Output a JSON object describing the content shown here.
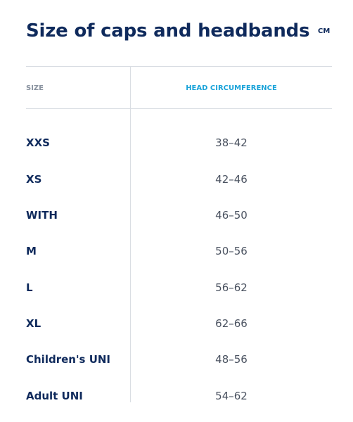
{
  "title": "Size of caps and headbands",
  "unit_toggle": "CM",
  "table": {
    "headers": {
      "size": "SIZE",
      "head_circumference": "HEAD CIRCUMFERENCE"
    },
    "rows": [
      {
        "size": "XXS",
        "range": "38–42"
      },
      {
        "size": "XS",
        "range": "42–46"
      },
      {
        "size": "WITH",
        "range": "46–50"
      },
      {
        "size": "M",
        "range": "50–56"
      },
      {
        "size": "L",
        "range": "56–62"
      },
      {
        "size": "XL",
        "range": "62–66"
      },
      {
        "size": "Children's UNI",
        "range": "48–56"
      },
      {
        "size": "Adult UNI",
        "range": "54–62"
      }
    ]
  },
  "colors": {
    "title": "#0f2a5c",
    "header_size": "#8a93a0",
    "header_head": "#1aa3d9",
    "value_text": "#4a5260",
    "rule": "#d9dde3"
  }
}
